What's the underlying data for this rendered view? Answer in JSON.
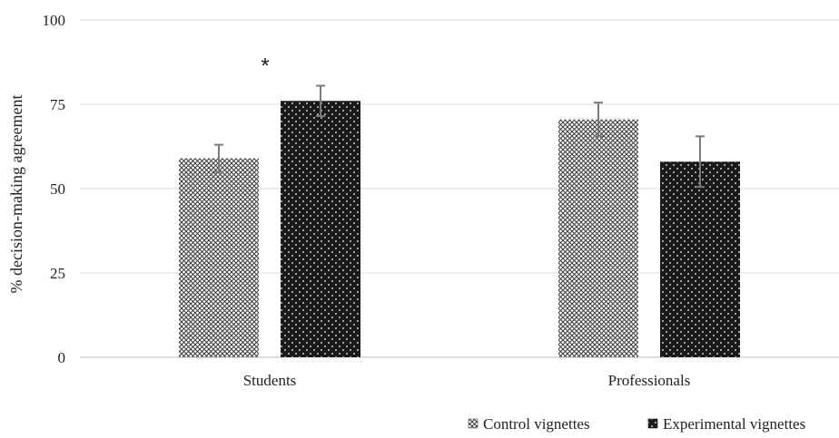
{
  "chart_data": {
    "type": "bar",
    "ylabel": "% decision-making agreement",
    "xlabel": "",
    "ylim": [
      0,
      100
    ],
    "yticks": [
      0,
      25,
      50,
      75,
      100
    ],
    "grid": true,
    "legend_position": "bottom-right",
    "categories": [
      "Students",
      "Professionals"
    ],
    "series": [
      {
        "name": "Control vignettes",
        "values": [
          59,
          70.5
        ],
        "error": [
          4,
          5
        ],
        "pattern": "crosshatch",
        "color": "#ffffff"
      },
      {
        "name": "Experimental vignettes",
        "values": [
          76,
          58
        ],
        "error": [
          4.5,
          7.5
        ],
        "pattern": "dotted-dark",
        "color": "#1a1a1a"
      }
    ],
    "annotations": [
      {
        "text": "*",
        "category": "Students",
        "series": "Experimental vignettes"
      }
    ]
  }
}
